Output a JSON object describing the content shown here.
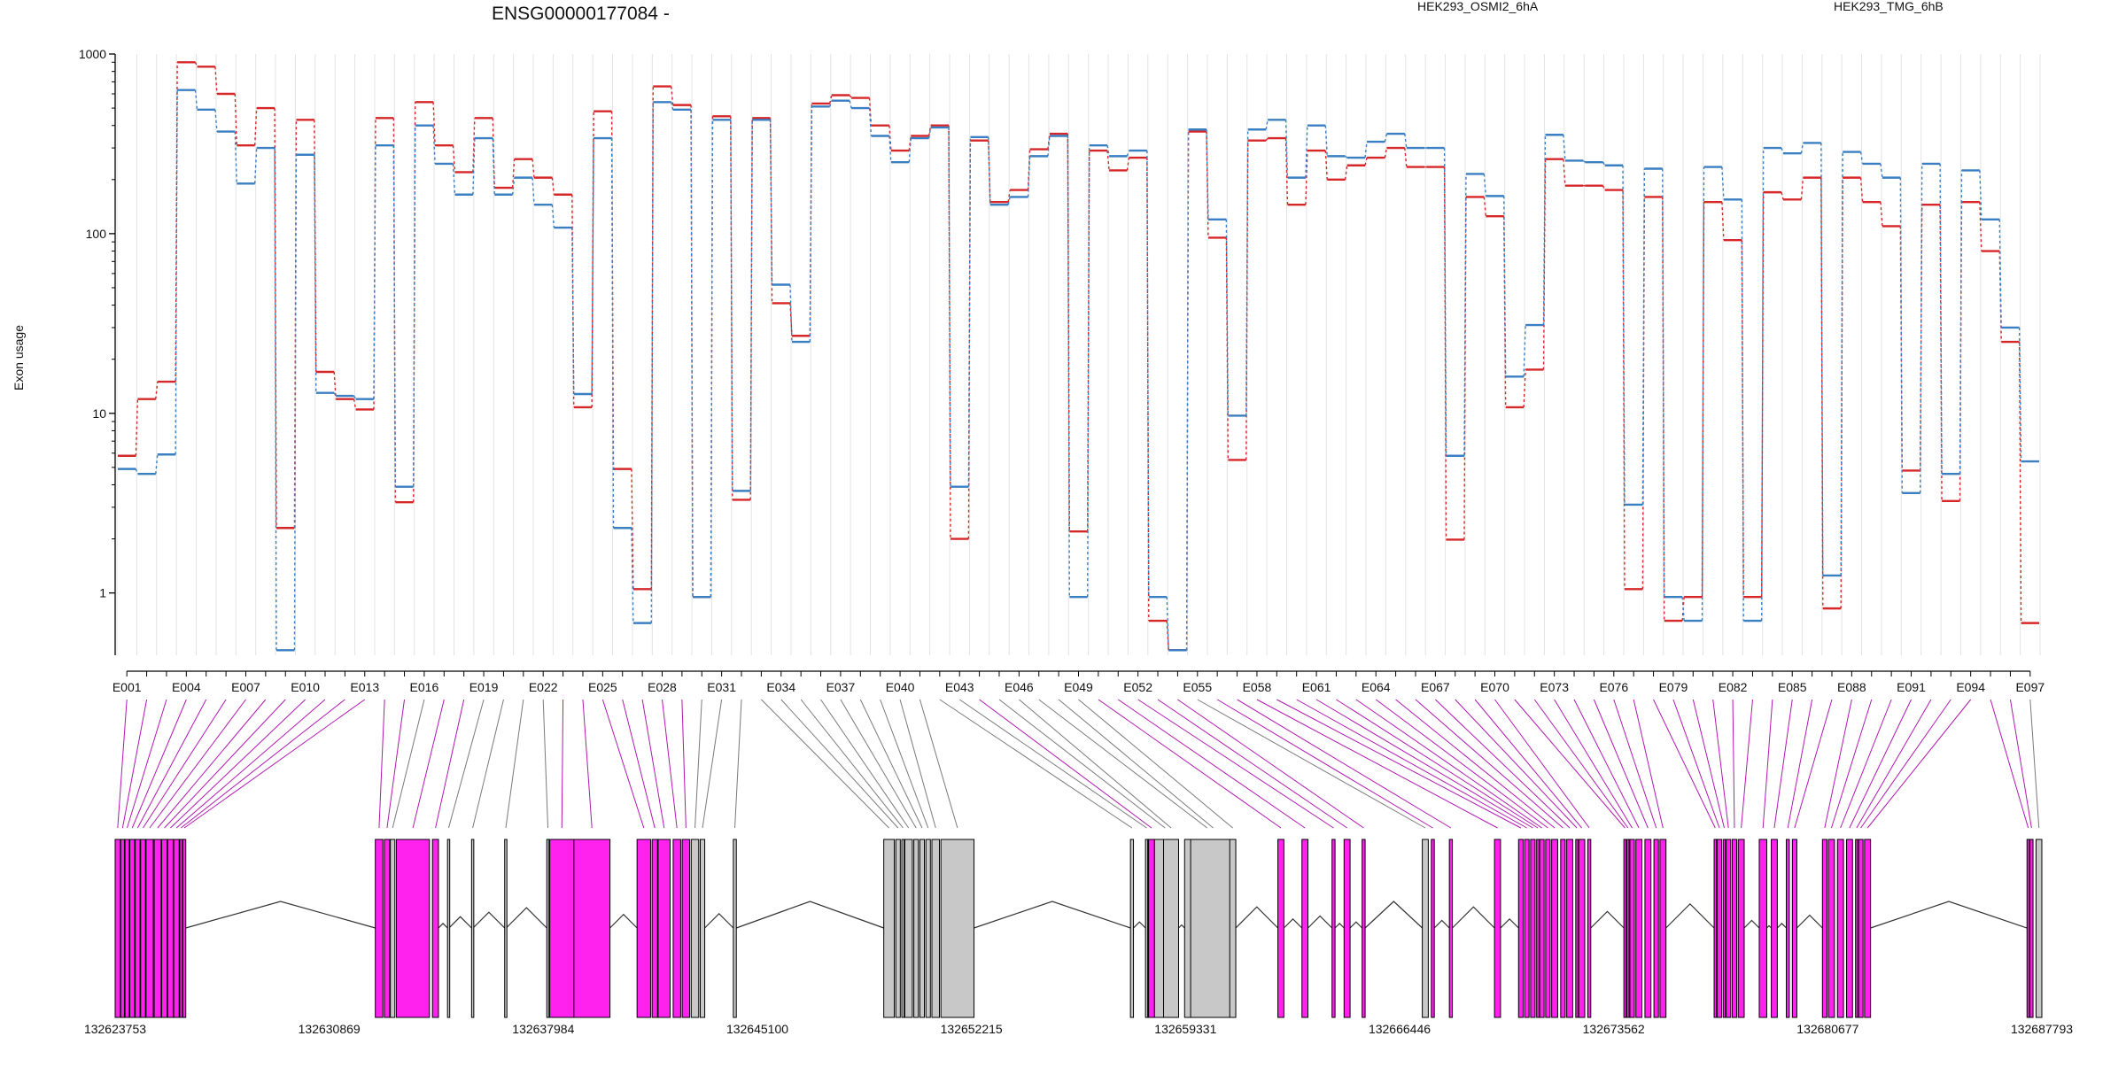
{
  "chart_data": {
    "type": "line",
    "title": "ENSG00000177084 -",
    "xlabel": "",
    "ylabel": "Exon usage",
    "y_scale": "log",
    "ylim": [
      0.45,
      1000
    ],
    "y_ticks": [
      "1",
      "10",
      "100",
      "1000"
    ],
    "legend_placement": "top-right",
    "grid": true,
    "exon_ids": [
      "E001",
      "E002",
      "E003",
      "E004",
      "E005",
      "E006",
      "E007",
      "E008",
      "E009",
      "E010",
      "E011",
      "E012",
      "E013",
      "E014",
      "E015",
      "E016",
      "E017",
      "E018",
      "E019",
      "E020",
      "E021",
      "E022",
      "E023",
      "E024",
      "E025",
      "E026",
      "E027",
      "E028",
      "E029",
      "E030",
      "E031",
      "E032",
      "E033",
      "E034",
      "E035",
      "E036",
      "E037",
      "E038",
      "E039",
      "E040",
      "E041",
      "E042",
      "E043",
      "E044",
      "E045",
      "E046",
      "E047",
      "E048",
      "E049",
      "E050",
      "E051",
      "E052",
      "E053",
      "E054",
      "E055",
      "E056",
      "E057",
      "E058",
      "E059",
      "E060",
      "E061",
      "E062",
      "E063",
      "E064",
      "E065",
      "E066",
      "E067",
      "E068",
      "E069",
      "E070",
      "E071",
      "E072",
      "E073",
      "E074",
      "E075",
      "E076",
      "E077",
      "E078",
      "E079",
      "E080",
      "E081",
      "E082",
      "E083",
      "E084",
      "E085",
      "E086",
      "E087",
      "E088",
      "E089",
      "E090",
      "E091",
      "E092",
      "E093",
      "E094",
      "E095",
      "E096",
      "E097"
    ],
    "x_tick_labels": [
      "E001",
      "E004",
      "E007",
      "E010",
      "E013",
      "E016",
      "E019",
      "E022",
      "E025",
      "E028",
      "E031",
      "E034",
      "E037",
      "E040",
      "E043",
      "E046",
      "E049",
      "E052",
      "E055",
      "E058",
      "E061",
      "E064",
      "E067",
      "E070",
      "E073",
      "E076",
      "E079",
      "E082",
      "E085",
      "E088",
      "E091",
      "E094",
      "E097"
    ],
    "series": [
      {
        "name": "HEK293_OSMI2_6hA",
        "color": "#d62728",
        "values": [
          5.8,
          12,
          15,
          900,
          850,
          600,
          310,
          500,
          2.3,
          430,
          17,
          12,
          10.5,
          440,
          3.2,
          540,
          310,
          220,
          440,
          180,
          260,
          205,
          165,
          10.8,
          480,
          4.9,
          1.05,
          660,
          520,
          0.95,
          450,
          3.3,
          440,
          41,
          27,
          530,
          590,
          570,
          400,
          290,
          350,
          400,
          2.0,
          330,
          150,
          175,
          295,
          360,
          2.2,
          290,
          225,
          265,
          0.7,
          0.48,
          370,
          95,
          5.5,
          330,
          340,
          145,
          290,
          200,
          240,
          265,
          300,
          235,
          235,
          1.98,
          160,
          125,
          10.8,
          17.5,
          260,
          185,
          185,
          175,
          1.05,
          160,
          0.7,
          0.95,
          150,
          92,
          0.95,
          170,
          155,
          205,
          0.82,
          205,
          150,
          110,
          4.8,
          145,
          3.25,
          150,
          80,
          25,
          0.68
        ]
      },
      {
        "name": "HEK293_TMG_6hB",
        "color": "#3a7fc1",
        "values": [
          4.9,
          4.6,
          5.9,
          630,
          490,
          370,
          190,
          300,
          0.48,
          275,
          13,
          12.5,
          12,
          310,
          3.9,
          400,
          245,
          165,
          340,
          165,
          205,
          145,
          108,
          12.8,
          340,
          2.3,
          0.68,
          540,
          490,
          0.95,
          430,
          3.7,
          430,
          52,
          25,
          510,
          550,
          500,
          350,
          250,
          340,
          390,
          3.9,
          345,
          145,
          160,
          270,
          350,
          0.95,
          310,
          270,
          290,
          0.95,
          0.48,
          380,
          120,
          9.7,
          380,
          430,
          205,
          400,
          270,
          265,
          325,
          360,
          300,
          300,
          5.8,
          215,
          162,
          16,
          31,
          355,
          255,
          250,
          240,
          3.1,
          230,
          0.95,
          0.7,
          235,
          155,
          0.7,
          300,
          280,
          320,
          1.25,
          285,
          245,
          205,
          3.6,
          245,
          4.6,
          225,
          120,
          30,
          5.4
        ]
      }
    ],
    "gene_model": {
      "coordinate_labels": [
        "132623753",
        "132630869",
        "132637984",
        "132645100",
        "132652215",
        "132659331",
        "132666446",
        "132673562",
        "132680677",
        "132687793"
      ],
      "coord_min": 132623753,
      "coord_max": 132687793,
      "exon_colors": {
        "differential": "#ff22ee",
        "normal": "#c8c8c8",
        "outline": "#000000"
      }
    }
  }
}
